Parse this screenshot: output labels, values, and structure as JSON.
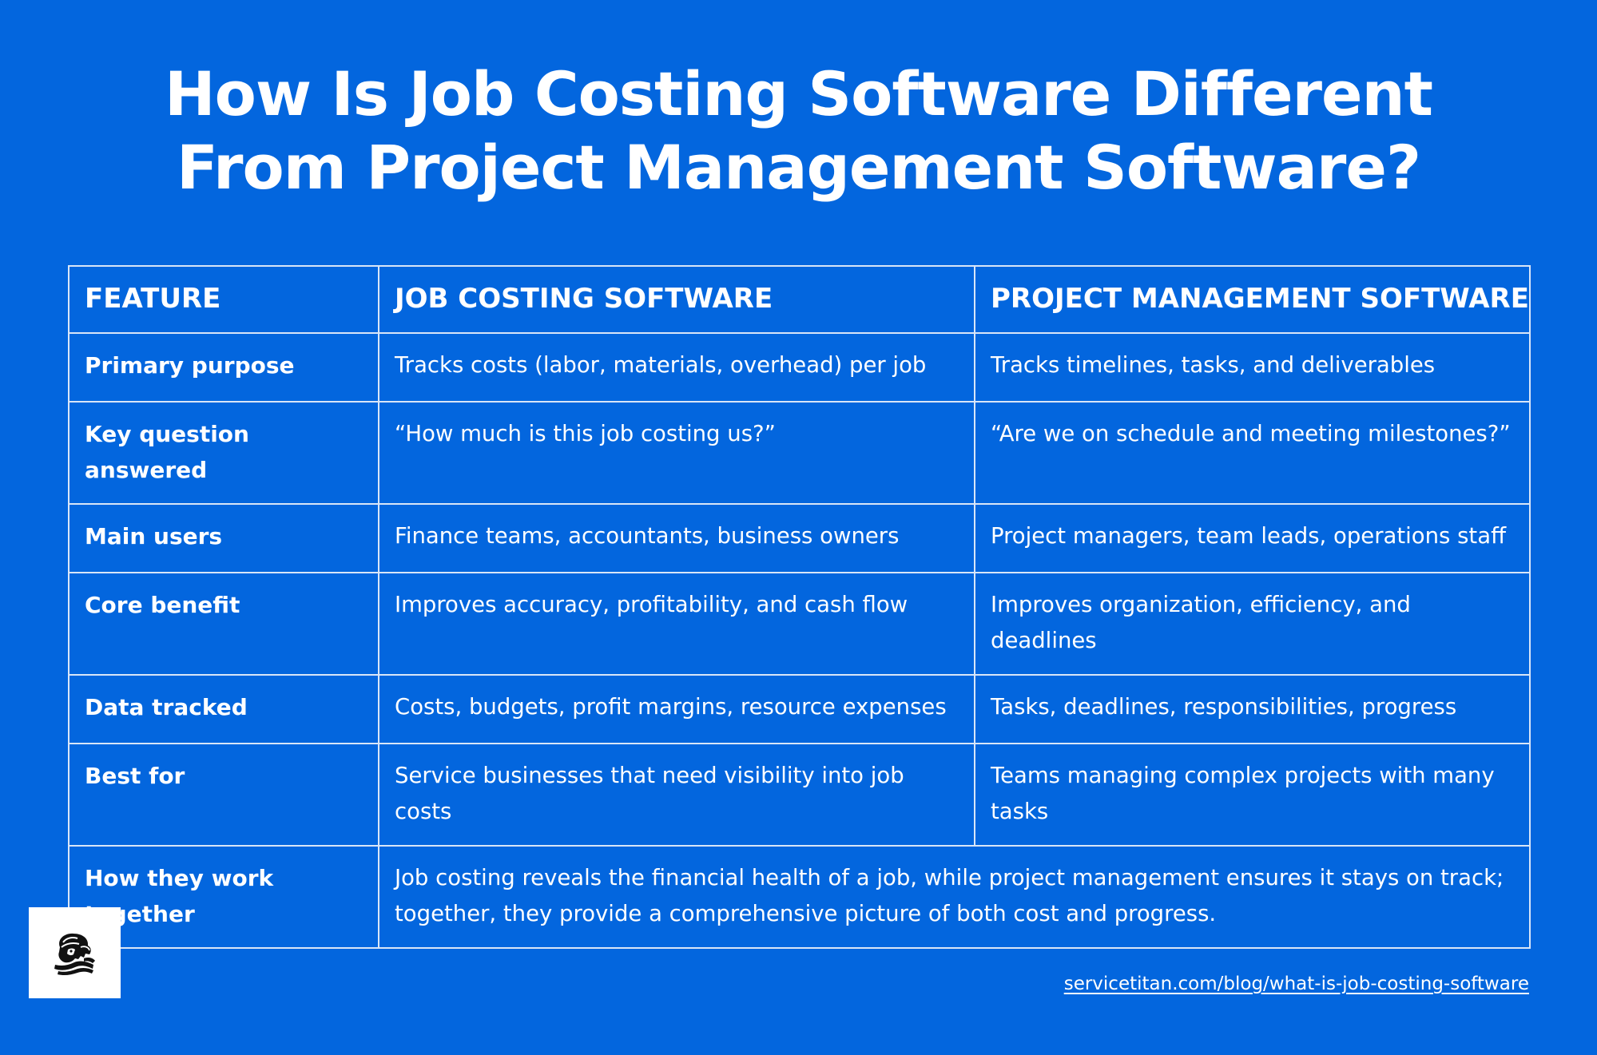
{
  "title": {
    "line1": "How Is Job Costing Software Different",
    "line2": "From Project Management Software?"
  },
  "table": {
    "headers": [
      "FEATURE",
      "JOB COSTING SOFTWARE",
      "PROJECT MANAGEMENT SOFTWARE"
    ],
    "rows": [
      {
        "feature": "Primary purpose",
        "job_costing": "Tracks costs (labor, materials, overhead) per job",
        "project_management": "Tracks timelines, tasks, and deliverables"
      },
      {
        "feature": "Key question answered",
        "job_costing": "“How much is this job costing us?”",
        "project_management": "“Are we on schedule and meeting milestones?”"
      },
      {
        "feature": "Main users",
        "job_costing": "Finance teams, accountants, business owners",
        "project_management": "Project managers, team leads, operations staff"
      },
      {
        "feature": "Core benefit",
        "job_costing": "Improves accuracy, profitability, and cash flow",
        "project_management": "Improves organization, efficiency, and deadlines"
      },
      {
        "feature": "Data tracked",
        "job_costing": "Costs, budgets, profit margins, resource expenses",
        "project_management": "Tasks, deadlines, responsibilities, progress"
      },
      {
        "feature": "Best for",
        "job_costing": "Service businesses that need visibility into job costs",
        "project_management": "Teams managing complex projects with many tasks"
      }
    ],
    "final_row": {
      "feature": "How they work together",
      "combined": "Job costing reveals the financial health of a job, while project management ensures it stays on track; together, they provide a comprehensive picture of both cost and progress."
    }
  },
  "logo": {
    "icon": "titan-head-icon"
  },
  "footer": {
    "source_url": "servicetitan.com/blog/what-is-job-costing-software"
  },
  "colors": {
    "background": "#0366de",
    "text": "#ffffff",
    "border": "#d9e6f8",
    "logo_box": "#ffffff",
    "logo_ink": "#111111"
  }
}
